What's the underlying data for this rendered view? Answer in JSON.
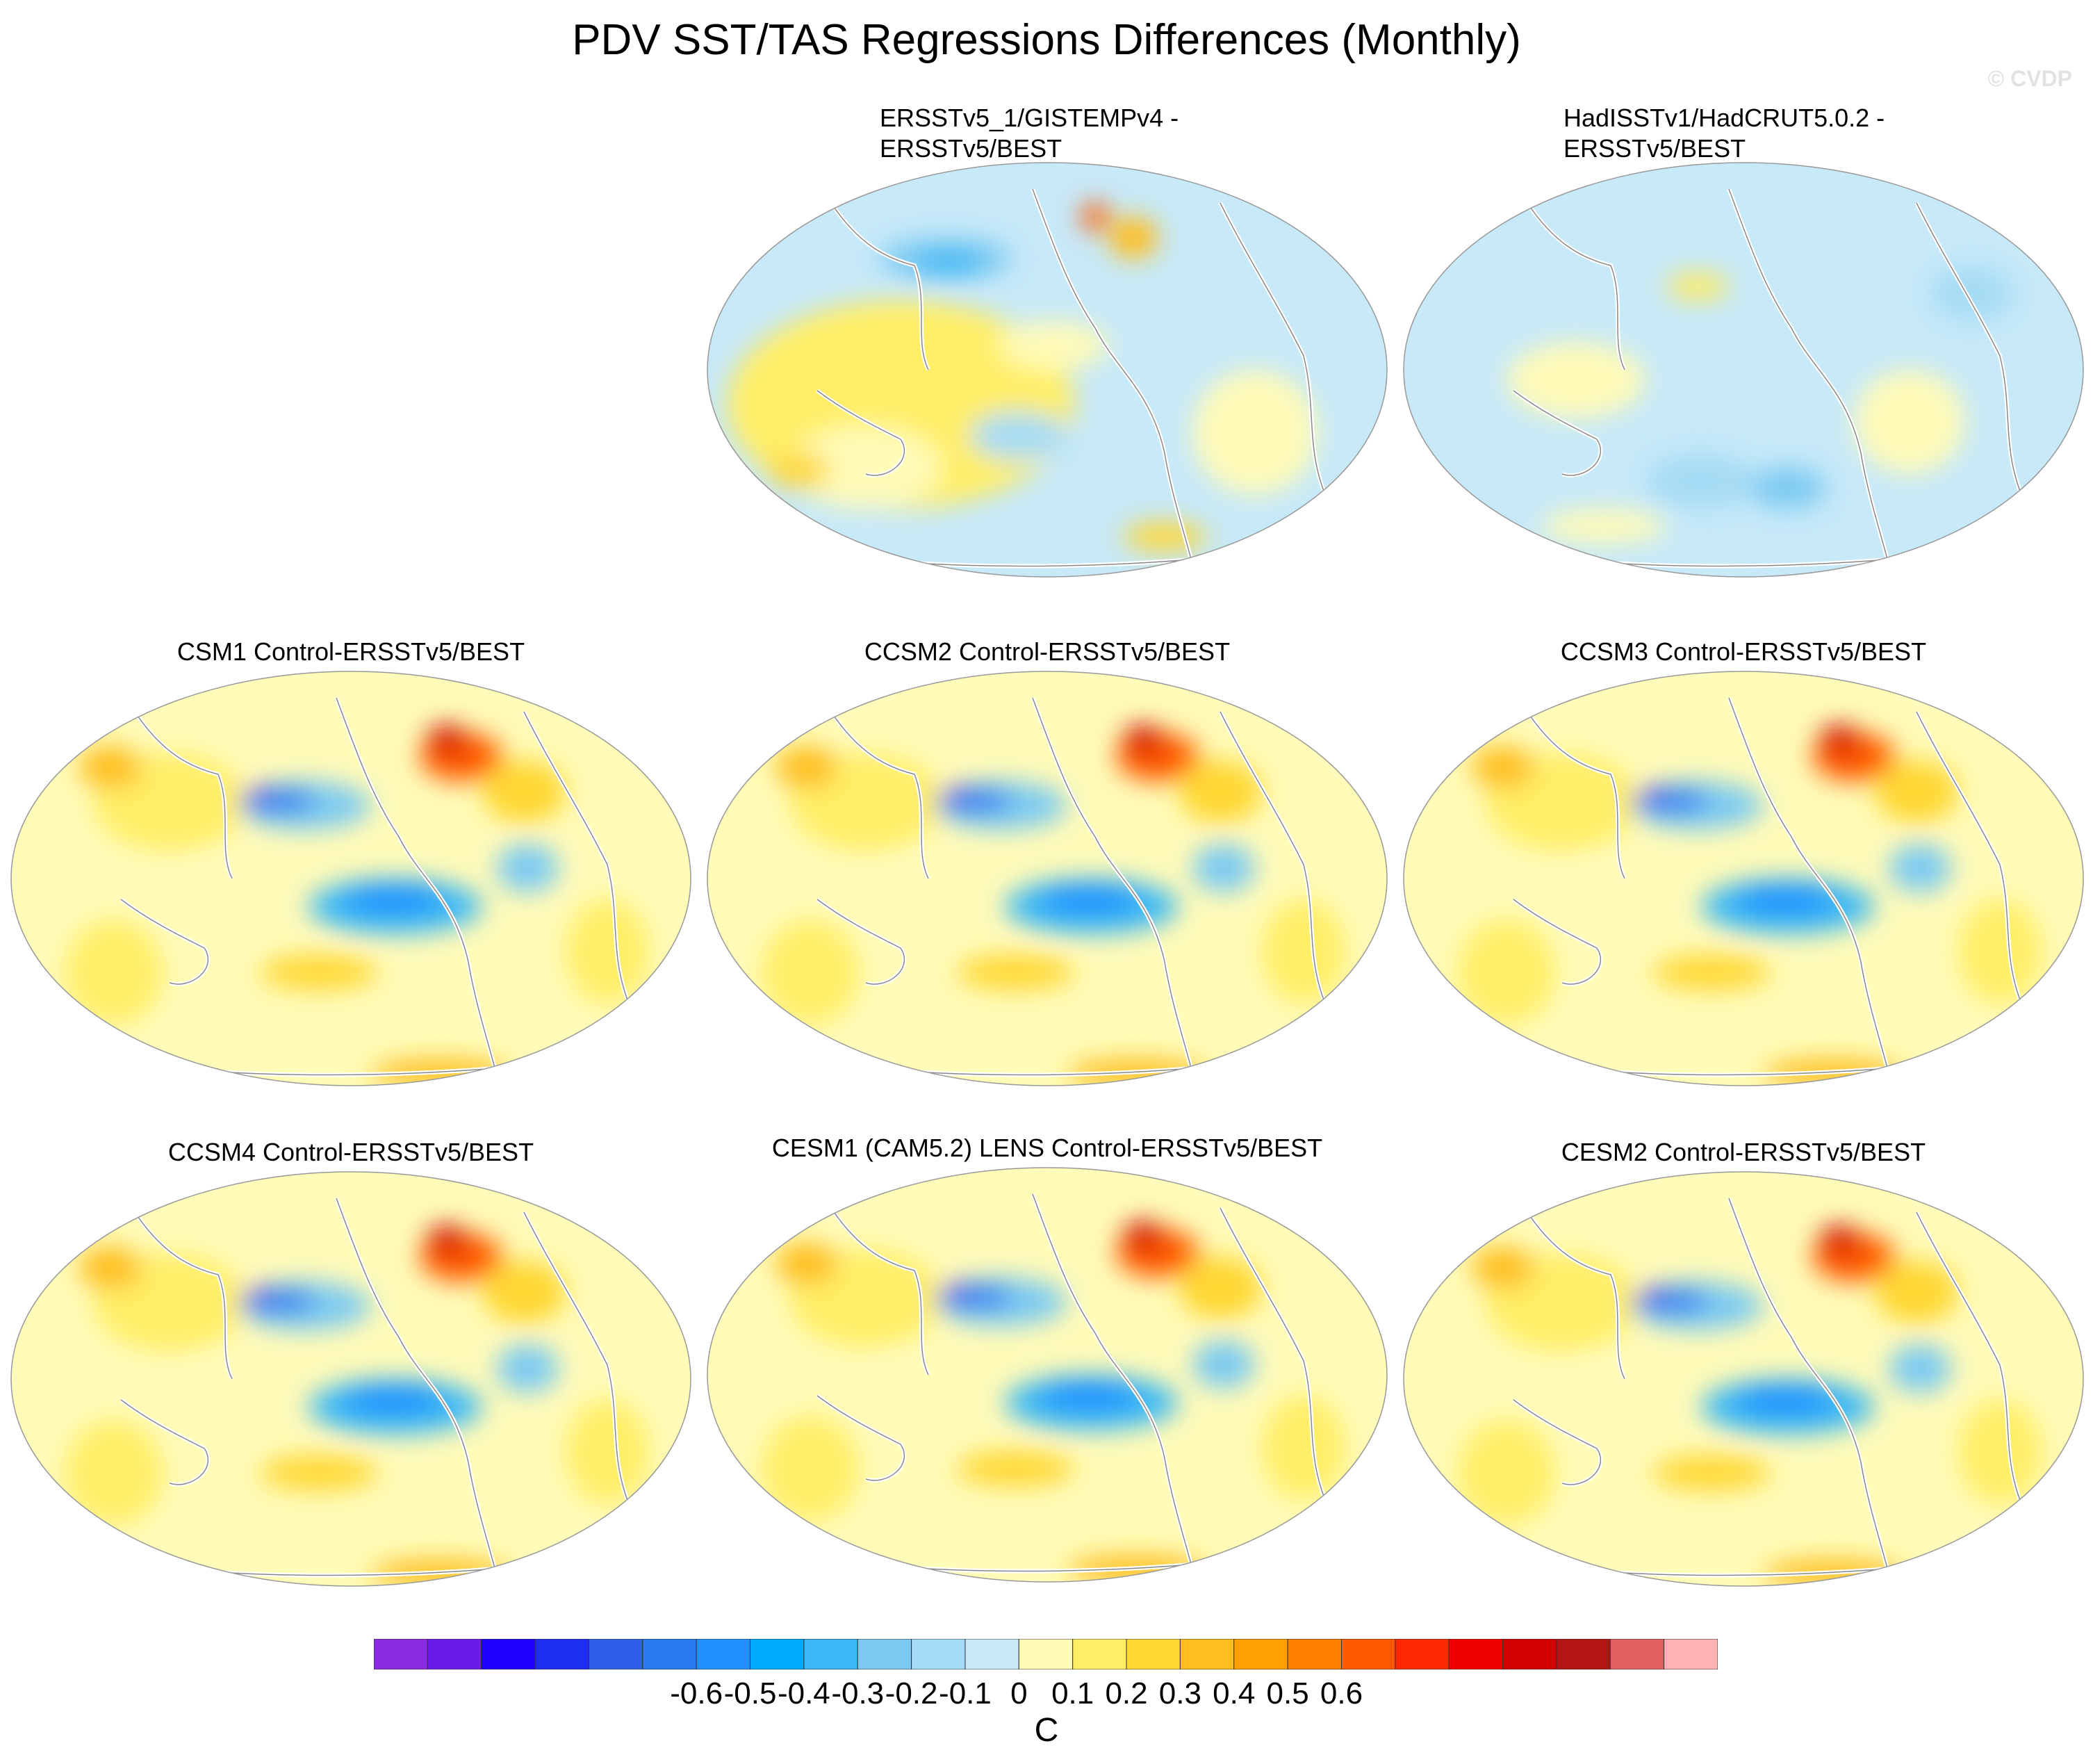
{
  "title": "PDV SST/TAS Regressions Differences (Monthly)",
  "watermark": "© CVDP",
  "panels": [
    {
      "title": "ERSSTv5_1/GISTEMPv4 -\nERSSTv5/BEST",
      "pattern": "obs1"
    },
    {
      "title": "HadISSTv1/HadCRUT5.0.2 -\nERSSTv5/BEST",
      "pattern": "obs2"
    },
    {
      "title": "CSM1 Control-ERSSTv5/BEST",
      "pattern": "model"
    },
    {
      "title": "CCSM2 Control-ERSSTv5/BEST",
      "pattern": "model"
    },
    {
      "title": "CCSM3 Control-ERSSTv5/BEST",
      "pattern": "model"
    },
    {
      "title": "CCSM4 Control-ERSSTv5/BEST",
      "pattern": "model"
    },
    {
      "title": "CESM1 (CAM5.2) LENS Control-ERSSTv5/BEST",
      "pattern": "model"
    },
    {
      "title": "CESM2 Control-ERSSTv5/BEST",
      "pattern": "model"
    }
  ],
  "colorbar": {
    "units": "C",
    "labels": [
      "-0.6",
      "-0.5",
      "-0.4",
      "-0.3",
      "-0.2",
      "-0.1",
      "0",
      "0.1",
      "0.2",
      "0.3",
      "0.4",
      "0.5",
      "0.6"
    ],
    "colors": [
      "#8a2be2",
      "#6a1be8",
      "#1e00ff",
      "#1e2ef0",
      "#2f5fe8",
      "#2a79f0",
      "#1e90ff",
      "#00aaff",
      "#3ab8f5",
      "#7ccaf2",
      "#a6dcf5",
      "#c7e9f8",
      "#fffbb8",
      "#ffee66",
      "#ffd733",
      "#ffbe1e",
      "#ffa000",
      "#ff7f00",
      "#ff5a00",
      "#ff2800",
      "#f00000",
      "#d20000",
      "#b41414",
      "#e06060",
      "#ffb4b4"
    ]
  }
}
